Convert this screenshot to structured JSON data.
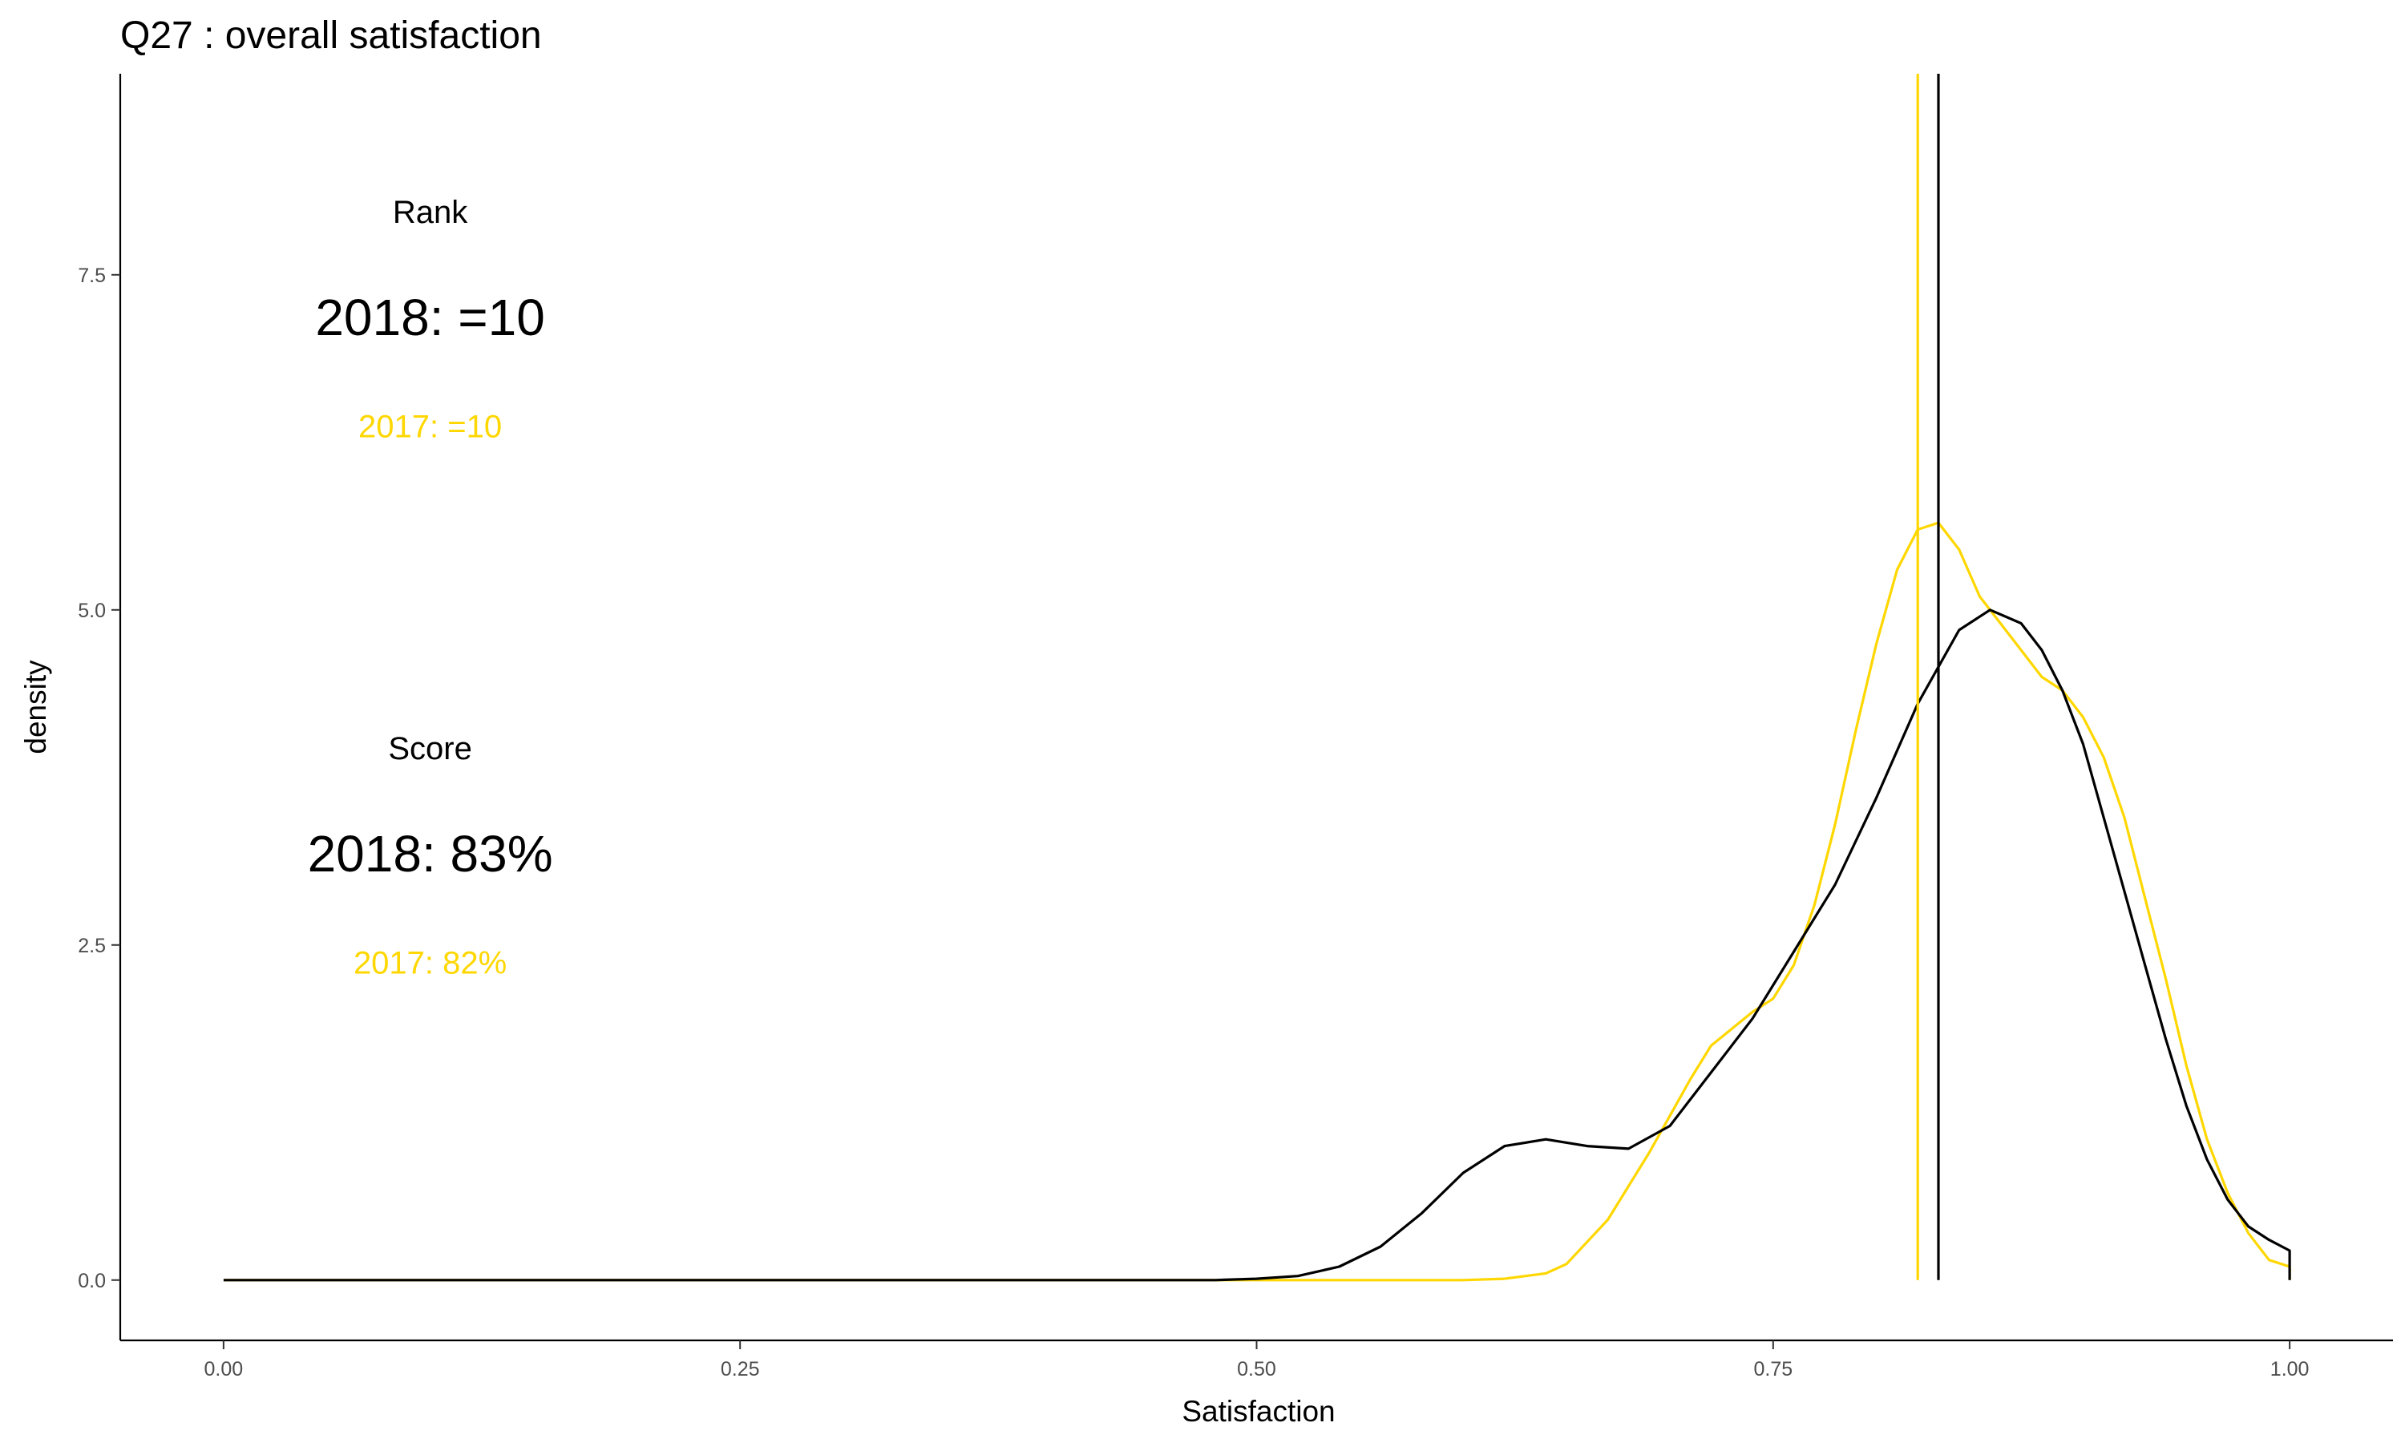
{
  "chart_data": {
    "type": "line",
    "title": "Q27 :   overall satisfaction",
    "xlabel": "Satisfaction",
    "ylabel": "density",
    "xlim": [
      -0.05,
      1.05
    ],
    "ylim": [
      -0.45,
      9.0
    ],
    "xticks": [
      0.0,
      0.25,
      0.5,
      0.75,
      1.0
    ],
    "xtick_labels": [
      "0.00",
      "0.25",
      "0.50",
      "0.75",
      "1.00"
    ],
    "yticks": [
      0.0,
      2.5,
      5.0,
      7.5
    ],
    "ytick_labels": [
      "0.0",
      "2.5",
      "5.0",
      "7.5"
    ],
    "grid": false,
    "colors": {
      "year_2018": "#000000",
      "year_2017": "#FFD700"
    },
    "series": [
      {
        "color": "#FFD700",
        "x": [
          0.0,
          0.5,
          0.6,
          0.62,
          0.64,
          0.65,
          0.67,
          0.69,
          0.71,
          0.72,
          0.74,
          0.75,
          0.76,
          0.77,
          0.78,
          0.79,
          0.8,
          0.81,
          0.82,
          0.83,
          0.84,
          0.85,
          0.86,
          0.87,
          0.88,
          0.89,
          0.9,
          0.91,
          0.92,
          0.93,
          0.94,
          0.95,
          0.96,
          0.97,
          0.98,
          0.99,
          1.0,
          1.0
        ],
        "y": [
          0.0,
          0.0,
          0.0,
          0.01,
          0.05,
          0.12,
          0.45,
          0.95,
          1.5,
          1.75,
          2.0,
          2.1,
          2.35,
          2.8,
          3.4,
          4.1,
          4.75,
          5.3,
          5.6,
          5.65,
          5.45,
          5.1,
          4.9,
          4.7,
          4.5,
          4.4,
          4.2,
          3.9,
          3.45,
          2.85,
          2.25,
          1.6,
          1.05,
          0.65,
          0.35,
          0.15,
          0.1,
          0.0
        ]
      },
      {
        "color": "#000000",
        "x": [
          0.0,
          0.48,
          0.5,
          0.52,
          0.54,
          0.56,
          0.58,
          0.6,
          0.62,
          0.64,
          0.66,
          0.68,
          0.7,
          0.72,
          0.74,
          0.76,
          0.78,
          0.8,
          0.82,
          0.84,
          0.855,
          0.87,
          0.88,
          0.89,
          0.9,
          0.91,
          0.92,
          0.93,
          0.94,
          0.95,
          0.96,
          0.97,
          0.98,
          0.99,
          1.0,
          1.0
        ],
        "y": [
          0.0,
          0.0,
          0.01,
          0.03,
          0.1,
          0.25,
          0.5,
          0.8,
          1.0,
          1.05,
          1.0,
          0.98,
          1.15,
          1.55,
          1.95,
          2.45,
          2.95,
          3.6,
          4.3,
          4.85,
          5.0,
          4.9,
          4.7,
          4.4,
          4.0,
          3.45,
          2.9,
          2.35,
          1.8,
          1.3,
          0.9,
          0.6,
          0.4,
          0.3,
          0.22,
          0.0
        ]
      }
    ],
    "vertical_lines": [
      {
        "x": 0.82,
        "color": "#FFD700"
      },
      {
        "x": 0.83,
        "color": "#000000"
      }
    ],
    "annotations": [
      {
        "text": "Rank",
        "x": 0.1,
        "y": 7.95,
        "color": "#000000",
        "size": "small"
      },
      {
        "text": "2018: =10",
        "x": 0.1,
        "y": 7.15,
        "color": "#000000",
        "size": "large"
      },
      {
        "text": "2017: =10",
        "x": 0.1,
        "y": 6.35,
        "color": "#FFD700",
        "size": "medium"
      },
      {
        "text": "Score",
        "x": 0.1,
        "y": 3.95,
        "color": "#000000",
        "size": "small"
      },
      {
        "text": "2018: 83%",
        "x": 0.1,
        "y": 3.15,
        "color": "#000000",
        "size": "large"
      },
      {
        "text": "2017: 82%",
        "x": 0.1,
        "y": 2.35,
        "color": "#FFD700",
        "size": "medium"
      }
    ]
  }
}
